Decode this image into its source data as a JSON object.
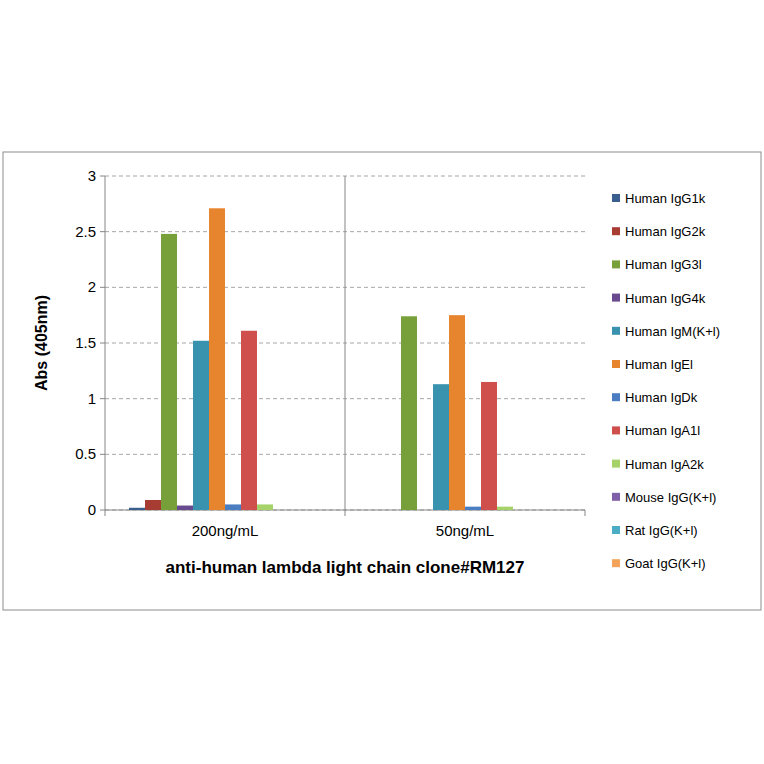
{
  "chart_data": {
    "type": "bar",
    "x_label": "anti-human lambda light chain clone#RM127",
    "y_label": "Abs (405nm)",
    "categories": [
      "200ng/mL",
      "50ng/mL"
    ],
    "series": [
      {
        "name": "Human IgG1k",
        "color": "#3A5F8F",
        "values": [
          0.02,
          0
        ]
      },
      {
        "name": "Human IgG2k",
        "color": "#A63C32",
        "values": [
          0.09,
          0
        ]
      },
      {
        "name": "Human IgG3l",
        "color": "#77A03B",
        "values": [
          2.48,
          1.74
        ]
      },
      {
        "name": "Human IgG4k",
        "color": "#6A4A8E",
        "values": [
          0.04,
          0
        ]
      },
      {
        "name": "Human IgM(K+l)",
        "color": "#3A93AE",
        "values": [
          1.52,
          1.13
        ]
      },
      {
        "name": "Human IgEl",
        "color": "#E7852F",
        "values": [
          2.71,
          1.75
        ]
      },
      {
        "name": "Human IgDk",
        "color": "#4A7EC0",
        "values": [
          0.05,
          0.03
        ]
      },
      {
        "name": "Human IgA1l",
        "color": "#CF4F4C",
        "values": [
          1.61,
          1.15
        ]
      },
      {
        "name": "Human IgA2k",
        "color": "#A5D36A",
        "values": [
          0.05,
          0.03
        ]
      },
      {
        "name": "Mouse IgG(K+l)",
        "color": "#7E5FA8",
        "values": [
          0,
          0
        ]
      },
      {
        "name": "Rat IgG(K+l)",
        "color": "#4BACC6",
        "values": [
          0,
          0
        ]
      },
      {
        "name": "Goat IgG(K+l)",
        "color": "#F3A35A",
        "values": [
          0,
          0
        ]
      }
    ],
    "ylim": [
      0,
      3
    ],
    "yticks": [
      0,
      0.5,
      1,
      1.5,
      2,
      2.5,
      3
    ],
    "grid": true,
    "legend": "right"
  }
}
